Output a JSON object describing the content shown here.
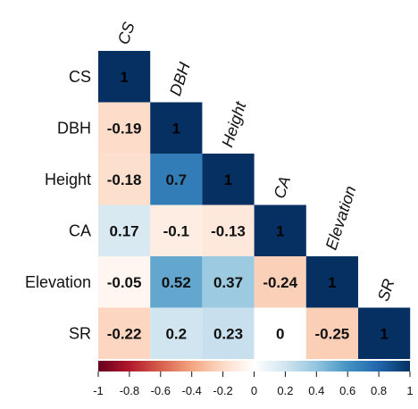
{
  "chart_data": {
    "type": "heatmap",
    "variables": [
      "CS",
      "DBH",
      "Height",
      "CA",
      "Elevation",
      "SR"
    ],
    "matrix_lower": [
      [
        1
      ],
      [
        -0.19,
        1
      ],
      [
        -0.18,
        0.7,
        1
      ],
      [
        0.17,
        -0.1,
        -0.13,
        1
      ],
      [
        -0.05,
        0.52,
        0.37,
        -0.24,
        1
      ],
      [
        -0.22,
        0.2,
        0.23,
        0,
        -0.25,
        1
      ]
    ],
    "colorbar": {
      "range": [
        -1,
        1
      ],
      "ticks": [
        "-1",
        "-0.8",
        "-0.6",
        "-0.4",
        "-0.2",
        "0",
        "0.2",
        "0.4",
        "0.6",
        "0.8",
        "1"
      ],
      "palette": [
        "#67001f",
        "#b2182b",
        "#d6604d",
        "#f4a582",
        "#fddbc7",
        "#ffffff",
        "#d1e5f0",
        "#92c5de",
        "#4393c3",
        "#2166ac",
        "#053061"
      ]
    }
  }
}
